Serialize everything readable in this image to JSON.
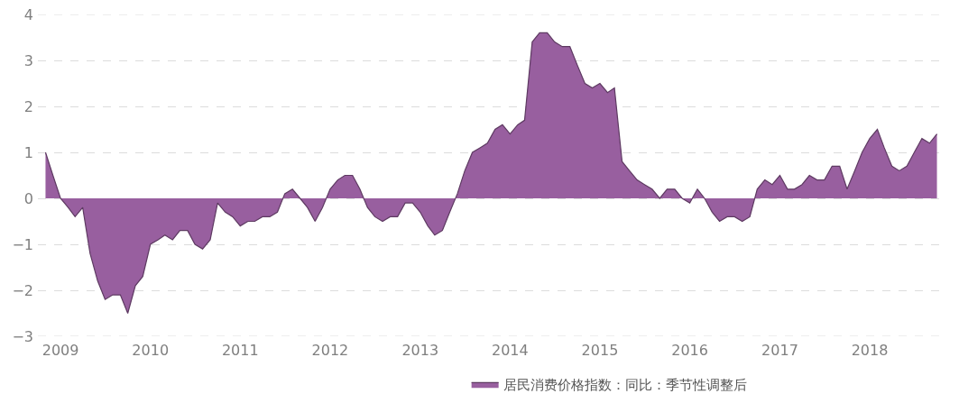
{
  "chart_data": {
    "type": "area",
    "x": [
      "2008-11",
      "2008-12",
      "2009-01",
      "2009-02",
      "2009-03",
      "2009-04",
      "2009-05",
      "2009-06",
      "2009-07",
      "2009-08",
      "2009-09",
      "2009-10",
      "2009-11",
      "2009-12",
      "2010-01",
      "2010-02",
      "2010-03",
      "2010-04",
      "2010-05",
      "2010-06",
      "2010-07",
      "2010-08",
      "2010-09",
      "2010-10",
      "2010-11",
      "2010-12",
      "2011-01",
      "2011-02",
      "2011-03",
      "2011-04",
      "2011-05",
      "2011-06",
      "2011-07",
      "2011-08",
      "2011-09",
      "2011-10",
      "2011-11",
      "2011-12",
      "2012-01",
      "2012-02",
      "2012-03",
      "2012-04",
      "2012-05",
      "2012-06",
      "2012-07",
      "2012-08",
      "2012-09",
      "2012-10",
      "2012-11",
      "2012-12",
      "2013-01",
      "2013-02",
      "2013-03",
      "2013-04",
      "2013-05",
      "2013-06",
      "2013-07",
      "2013-08",
      "2013-09",
      "2013-10",
      "2013-11",
      "2013-12",
      "2014-01",
      "2014-02",
      "2014-03",
      "2014-04",
      "2014-05",
      "2014-06",
      "2014-07",
      "2014-08",
      "2014-09",
      "2014-10",
      "2014-11",
      "2014-12",
      "2015-01",
      "2015-02",
      "2015-03",
      "2015-04",
      "2015-05",
      "2015-06",
      "2015-07",
      "2015-08",
      "2015-09",
      "2015-10",
      "2015-11",
      "2015-12",
      "2016-01",
      "2016-02",
      "2016-03",
      "2016-04",
      "2016-05",
      "2016-06",
      "2016-07",
      "2016-08",
      "2016-09",
      "2016-10",
      "2016-11",
      "2016-12",
      "2017-01",
      "2017-02",
      "2017-03",
      "2017-04",
      "2017-05",
      "2017-06",
      "2017-07",
      "2017-08",
      "2017-09",
      "2017-10",
      "2017-11",
      "2017-12",
      "2018-01",
      "2018-02",
      "2018-03",
      "2018-04",
      "2018-05",
      "2018-06",
      "2018-07",
      "2018-08",
      "2018-09",
      "2018-10"
    ],
    "series": [
      {
        "name": "居民消费价格指数：同比：季节性调整后",
        "color": "#985f9f",
        "values": [
          1.0,
          0.5,
          0.0,
          -0.2,
          -0.4,
          -0.2,
          -1.2,
          -1.8,
          -2.2,
          -2.1,
          -2.1,
          -2.5,
          -1.9,
          -1.7,
          -1.0,
          -0.9,
          -0.8,
          -0.9,
          -0.7,
          -0.7,
          -1.0,
          -1.1,
          -0.9,
          -0.1,
          -0.3,
          -0.4,
          -0.6,
          -0.5,
          -0.5,
          -0.4,
          -0.4,
          -0.3,
          0.1,
          0.2,
          0.0,
          -0.2,
          -0.5,
          -0.2,
          0.2,
          0.4,
          0.5,
          0.5,
          0.2,
          -0.2,
          -0.4,
          -0.5,
          -0.4,
          -0.4,
          -0.1,
          -0.1,
          -0.3,
          -0.6,
          -0.8,
          -0.7,
          -0.3,
          0.1,
          0.6,
          1.0,
          1.1,
          1.2,
          1.5,
          1.6,
          1.4,
          1.6,
          1.7,
          3.4,
          3.6,
          3.6,
          3.4,
          3.3,
          3.3,
          2.9,
          2.5,
          2.4,
          2.5,
          2.3,
          2.4,
          0.8,
          0.6,
          0.4,
          0.3,
          0.2,
          0.0,
          0.2,
          0.2,
          0.0,
          -0.1,
          0.2,
          0.0,
          -0.3,
          -0.5,
          -0.4,
          -0.4,
          -0.5,
          -0.4,
          0.2,
          0.4,
          0.3,
          0.5,
          0.2,
          0.2,
          0.3,
          0.5,
          0.4,
          0.4,
          0.7,
          0.7,
          0.2,
          0.6,
          1.0,
          1.3,
          1.5,
          1.1,
          0.7,
          0.6,
          0.7,
          1.0,
          1.3,
          1.2,
          1.4
        ]
      }
    ],
    "xlim": [
      "2008-10",
      "2018-11"
    ],
    "xticks": [
      "2009",
      "2010",
      "2011",
      "2012",
      "2013",
      "2014",
      "2015",
      "2016",
      "2017",
      "2018"
    ],
    "ylim": [
      -3,
      4
    ],
    "yticks": [
      -3,
      -2,
      -1,
      0,
      1,
      2,
      3,
      4
    ],
    "grid": "y",
    "legend": "bottom"
  }
}
